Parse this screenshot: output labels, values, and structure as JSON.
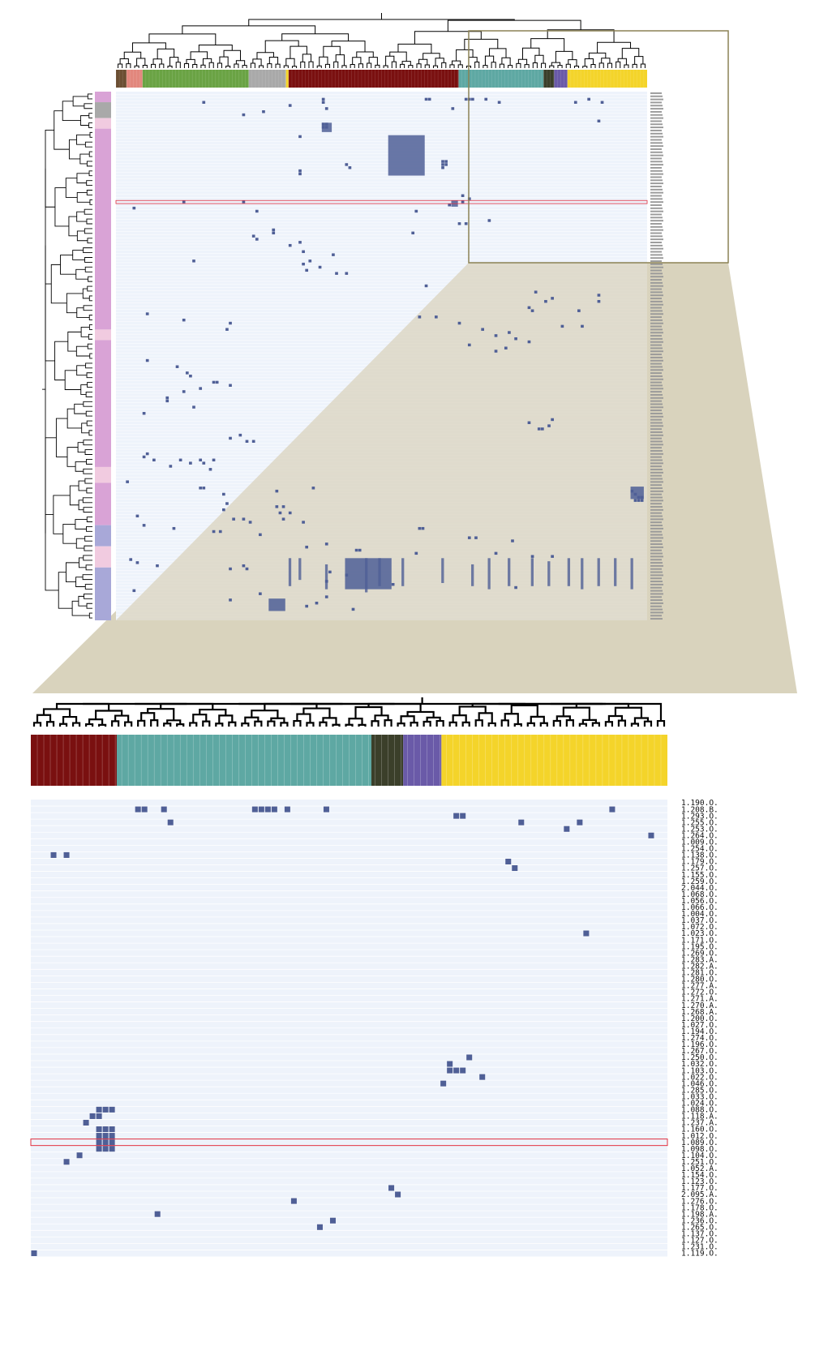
{
  "figure": {
    "colors": {
      "matrix_bg": "#eef3fb",
      "row_line": "#ffffff",
      "cell": "#4f5f96",
      "highlight": "#e03040",
      "zoom_frame": "#8c8255",
      "zoom_fill": "#d9d3bd",
      "tree": "#000000"
    },
    "cluster_colors": {
      "brown": "#6b4e32",
      "salmon": "#e2877d",
      "green": "#6aa344",
      "grey": "#a9a9a9",
      "darkred": "#7a1010",
      "teal": "#5ea8a3",
      "olive": "#3b3f2a",
      "purple": "#6a5aa8",
      "yellow": "#f4d42a",
      "pink": "#d9a3d6",
      "lightpink": "#f1cbe0",
      "blue": "#a8a8d8"
    }
  },
  "overview": {
    "top_color_bar": [
      {
        "color": "brown",
        "frac": 0.02
      },
      {
        "color": "salmon",
        "frac": 0.03
      },
      {
        "color": "green",
        "frac": 0.2
      },
      {
        "color": "grey",
        "frac": 0.07
      },
      {
        "color": "yellow",
        "frac": 0.005
      },
      {
        "color": "darkred",
        "frac": 0.32
      },
      {
        "color": "teal",
        "frac": 0.16
      },
      {
        "color": "olive",
        "frac": 0.02
      },
      {
        "color": "purple",
        "frac": 0.025
      },
      {
        "color": "yellow",
        "frac": 0.15
      }
    ],
    "left_color_bar": [
      {
        "color": "pink",
        "frac": 0.02
      },
      {
        "color": "grey",
        "frac": 0.03
      },
      {
        "color": "lightpink",
        "frac": 0.02
      },
      {
        "color": "pink",
        "frac": 0.38
      },
      {
        "color": "lightpink",
        "frac": 0.02
      },
      {
        "color": "pink",
        "frac": 0.24
      },
      {
        "color": "lightpink",
        "frac": 0.03
      },
      {
        "color": "pink",
        "frac": 0.08
      },
      {
        "color": "blue",
        "frac": 0.04
      },
      {
        "color": "lightpink",
        "frac": 0.04
      },
      {
        "color": "blue",
        "frac": 0.1
      }
    ],
    "row_count": 170,
    "col_count": 160,
    "highlight_row": 35,
    "cells": [
      [
        2,
        62
      ],
      [
        3,
        26
      ],
      [
        3,
        62
      ],
      [
        4,
        52
      ],
      [
        2,
        93
      ],
      [
        2,
        94
      ],
      [
        2,
        105
      ],
      [
        2,
        106
      ],
      [
        2,
        107
      ],
      [
        2,
        111
      ],
      [
        3,
        115
      ],
      [
        3,
        138
      ],
      [
        2,
        142
      ],
      [
        3,
        146
      ],
      [
        5,
        63
      ],
      [
        6,
        44
      ],
      [
        5,
        101
      ],
      [
        7,
        38
      ],
      [
        9,
        145
      ],
      [
        10,
        62
      ],
      [
        11,
        62
      ],
      [
        10,
        63
      ],
      [
        11,
        63
      ],
      [
        14,
        55
      ],
      [
        25,
        55
      ],
      [
        26,
        55
      ],
      [
        23,
        69
      ],
      [
        24,
        70
      ],
      [
        22,
        98
      ],
      [
        23,
        98
      ],
      [
        24,
        98
      ],
      [
        22,
        99
      ],
      [
        23,
        99
      ],
      [
        34,
        106
      ],
      [
        35,
        104
      ],
      [
        33,
        104
      ],
      [
        36,
        100
      ],
      [
        35,
        20
      ],
      [
        35,
        38
      ],
      [
        37,
        5
      ],
      [
        38,
        42
      ],
      [
        38,
        90
      ],
      [
        42,
        103
      ],
      [
        42,
        105
      ],
      [
        41,
        112
      ],
      [
        44,
        47
      ],
      [
        45,
        47
      ],
      [
        45,
        89
      ],
      [
        46,
        41
      ],
      [
        47,
        42
      ],
      [
        48,
        55
      ],
      [
        49,
        52
      ],
      [
        52,
        65
      ],
      [
        55,
        56
      ],
      [
        54,
        23
      ],
      [
        54,
        58
      ],
      [
        51,
        56
      ],
      [
        57,
        57
      ],
      [
        56,
        61
      ],
      [
        58,
        69
      ],
      [
        58,
        66
      ],
      [
        62,
        93
      ],
      [
        64,
        126
      ],
      [
        65,
        145
      ],
      [
        66,
        131
      ],
      [
        67,
        145
      ],
      [
        67,
        129
      ],
      [
        69,
        124
      ],
      [
        70,
        139
      ],
      [
        70,
        125
      ],
      [
        72,
        96
      ],
      [
        74,
        103
      ],
      [
        75,
        140
      ],
      [
        75,
        134
      ],
      [
        76,
        110
      ],
      [
        77,
        118
      ],
      [
        79,
        120
      ],
      [
        78,
        114
      ],
      [
        80,
        124
      ],
      [
        81,
        106
      ],
      [
        82,
        117
      ],
      [
        83,
        114
      ],
      [
        71,
        9
      ],
      [
        73,
        20
      ],
      [
        74,
        34
      ],
      [
        76,
        33
      ],
      [
        72,
        91
      ],
      [
        86,
        9
      ],
      [
        88,
        18
      ],
      [
        90,
        21
      ],
      [
        91,
        22
      ],
      [
        93,
        30
      ],
      [
        95,
        25
      ],
      [
        93,
        29
      ],
      [
        94,
        34
      ],
      [
        96,
        20
      ],
      [
        98,
        15
      ],
      [
        99,
        15
      ],
      [
        101,
        23
      ],
      [
        103,
        8
      ],
      [
        105,
        131
      ],
      [
        106,
        124
      ],
      [
        107,
        130
      ],
      [
        108,
        127
      ],
      [
        108,
        128
      ],
      [
        110,
        37
      ],
      [
        111,
        34
      ],
      [
        112,
        39
      ],
      [
        112,
        41
      ],
      [
        116,
        9
      ],
      [
        117,
        8
      ],
      [
        118,
        11
      ],
      [
        118,
        19
      ],
      [
        119,
        22
      ],
      [
        118,
        25
      ],
      [
        119,
        26
      ],
      [
        118,
        29
      ],
      [
        120,
        16
      ],
      [
        121,
        28
      ],
      [
        125,
        3
      ],
      [
        127,
        25
      ],
      [
        127,
        26
      ],
      [
        128,
        48
      ],
      [
        127,
        59
      ],
      [
        129,
        32
      ],
      [
        128,
        155
      ],
      [
        129,
        156
      ],
      [
        130,
        157
      ],
      [
        130,
        158
      ],
      [
        131,
        156
      ],
      [
        131,
        157
      ],
      [
        131,
        158
      ],
      [
        132,
        33
      ],
      [
        133,
        48
      ],
      [
        133,
        50
      ],
      [
        134,
        32
      ],
      [
        135,
        49
      ],
      [
        135,
        52
      ],
      [
        136,
        6
      ],
      [
        137,
        35
      ],
      [
        137,
        38
      ],
      [
        138,
        40
      ],
      [
        137,
        50
      ],
      [
        138,
        56
      ],
      [
        139,
        8
      ],
      [
        140,
        17
      ],
      [
        141,
        29
      ],
      [
        141,
        31
      ],
      [
        142,
        43
      ],
      [
        140,
        91
      ],
      [
        140,
        92
      ],
      [
        143,
        106
      ],
      [
        143,
        108
      ],
      [
        144,
        119
      ],
      [
        145,
        63
      ],
      [
        146,
        57
      ],
      [
        147,
        72
      ],
      [
        147,
        73
      ],
      [
        148,
        90
      ],
      [
        148,
        114
      ],
      [
        149,
        125
      ],
      [
        149,
        131
      ],
      [
        150,
        4
      ],
      [
        151,
        6
      ],
      [
        152,
        12
      ],
      [
        153,
        34
      ],
      [
        152,
        38
      ],
      [
        153,
        39
      ],
      [
        154,
        64
      ],
      [
        155,
        69
      ],
      [
        157,
        63
      ],
      [
        158,
        83
      ],
      [
        159,
        120
      ],
      [
        160,
        5
      ],
      [
        161,
        43
      ],
      [
        162,
        63
      ],
      [
        163,
        34
      ],
      [
        164,
        60
      ],
      [
        165,
        57
      ],
      [
        166,
        71
      ]
    ],
    "blocks": [
      {
        "r0": 14,
        "r1": 26,
        "c0": 82,
        "c1": 92
      },
      {
        "r0": 10,
        "r1": 12,
        "c0": 62,
        "c1": 64
      },
      {
        "r0": 35,
        "r1": 36,
        "c0": 101,
        "c1": 102
      },
      {
        "r0": 127,
        "r1": 130,
        "c0": 155,
        "c1": 158
      },
      {
        "r0": 150,
        "r1": 159,
        "c0": 69,
        "c1": 82
      },
      {
        "r0": 163,
        "r1": 166,
        "c0": 46,
        "c1": 50
      }
    ],
    "column_stripes": [
      {
        "c": 52,
        "r0": 150,
        "r1": 158
      },
      {
        "c": 55,
        "r0": 150,
        "r1": 156
      },
      {
        "c": 63,
        "r0": 152,
        "r1": 159
      },
      {
        "c": 75,
        "r0": 150,
        "r1": 160
      },
      {
        "c": 79,
        "r0": 150,
        "r1": 158
      },
      {
        "c": 86,
        "r0": 150,
        "r1": 158
      },
      {
        "c": 98,
        "r0": 150,
        "r1": 157
      },
      {
        "c": 107,
        "r0": 152,
        "r1": 158
      },
      {
        "c": 112,
        "r0": 150,
        "r1": 159
      },
      {
        "c": 118,
        "r0": 150,
        "r1": 158
      },
      {
        "c": 125,
        "r0": 150,
        "r1": 158
      },
      {
        "c": 130,
        "r0": 151,
        "r1": 158
      },
      {
        "c": 136,
        "r0": 150,
        "r1": 158
      },
      {
        "c": 140,
        "r0": 150,
        "r1": 159
      },
      {
        "c": 145,
        "r0": 150,
        "r1": 158
      },
      {
        "c": 150,
        "r0": 150,
        "r1": 158
      },
      {
        "c": 155,
        "r0": 150,
        "r1": 159
      }
    ]
  },
  "zoom": {
    "color_bar": [
      {
        "color": "darkred",
        "frac": 0.135
      },
      {
        "color": "teal",
        "frac": 0.4
      },
      {
        "color": "olive",
        "frac": 0.05
      },
      {
        "color": "purple",
        "frac": 0.06
      },
      {
        "color": "yellow",
        "frac": 0.355
      }
    ],
    "col_count": 98,
    "row_labels": [
      "1.190.O.",
      "1.208.B.",
      "1.293.O.",
      "1.255.O.",
      "1.253.O.",
      "1.264.O.",
      "1.009.O.",
      "1.254.O.",
      "1.138.O.",
      "1.179.O.",
      "1.257.O.",
      "1.155.O.",
      "1.259.O.",
      "2.044.O.",
      "1.068.O.",
      "1.056.O.",
      "1.066.O.",
      "1.004.O.",
      "1.037.O.",
      "1.072.O.",
      "1.023.O.",
      "1.171.O.",
      "1.195.O.",
      "1.269.O.",
      "1.283.A.",
      "1.282.A.",
      "1.281.O.",
      "1.280.O.",
      "1.277.A.",
      "1.272.O.",
      "1.271.A.",
      "1.270.A.",
      "1.268.A.",
      "1.200.O.",
      "1.027.O.",
      "1.194.O.",
      "1.274.O.",
      "1.196.O.",
      "1.267.O.",
      "1.250.O.",
      "1.032.O.",
      "1.103.O.",
      "1.022.O.",
      "1.046.O.",
      "1.285.O.",
      "1.033.O.",
      "1.024.O.",
      "1.088.O.",
      "1.118.A.",
      "1.237.A.",
      "1.160.O.",
      "1.012.O.",
      "1.089.O.",
      "1.098.O.",
      "1.104.O.",
      "1.251.O.",
      "1.052.A.",
      "1.154.O.",
      "1.123.O.",
      "1.177.O.",
      "2.095.A.",
      "1.276.O.",
      "1.178.O.",
      "1.198.A.",
      "1.236.O.",
      "1.265.O.",
      "1.137.O.",
      "1.127.O.",
      "1.231.O.",
      "1.119.O."
    ],
    "highlight_row": 52,
    "cells": [
      [
        1,
        16
      ],
      [
        1,
        17
      ],
      [
        1,
        20
      ],
      [
        1,
        34
      ],
      [
        1,
        35
      ],
      [
        1,
        36
      ],
      [
        1,
        37
      ],
      [
        1,
        39
      ],
      [
        1,
        45
      ],
      [
        1,
        89
      ],
      [
        2,
        65
      ],
      [
        2,
        66
      ],
      [
        3,
        21
      ],
      [
        3,
        75
      ],
      [
        3,
        84
      ],
      [
        4,
        82
      ],
      [
        5,
        95
      ],
      [
        8,
        3
      ],
      [
        8,
        5
      ],
      [
        9,
        73
      ],
      [
        10,
        74
      ],
      [
        20,
        85
      ],
      [
        39,
        67
      ],
      [
        40,
        64
      ],
      [
        41,
        64
      ],
      [
        41,
        65
      ],
      [
        41,
        66
      ],
      [
        42,
        69
      ],
      [
        43,
        63
      ],
      [
        47,
        10
      ],
      [
        47,
        11
      ],
      [
        47,
        12
      ],
      [
        48,
        9
      ],
      [
        48,
        10
      ],
      [
        49,
        8
      ],
      [
        50,
        10
      ],
      [
        50,
        11
      ],
      [
        50,
        12
      ],
      [
        51,
        10
      ],
      [
        51,
        11
      ],
      [
        51,
        12
      ],
      [
        52,
        10
      ],
      [
        52,
        11
      ],
      [
        52,
        12
      ],
      [
        53,
        10
      ],
      [
        53,
        11
      ],
      [
        53,
        12
      ],
      [
        54,
        7
      ],
      [
        55,
        5
      ],
      [
        59,
        55
      ],
      [
        60,
        56
      ],
      [
        61,
        40
      ],
      [
        63,
        19
      ],
      [
        64,
        46
      ],
      [
        65,
        44
      ],
      [
        69,
        0
      ]
    ]
  }
}
